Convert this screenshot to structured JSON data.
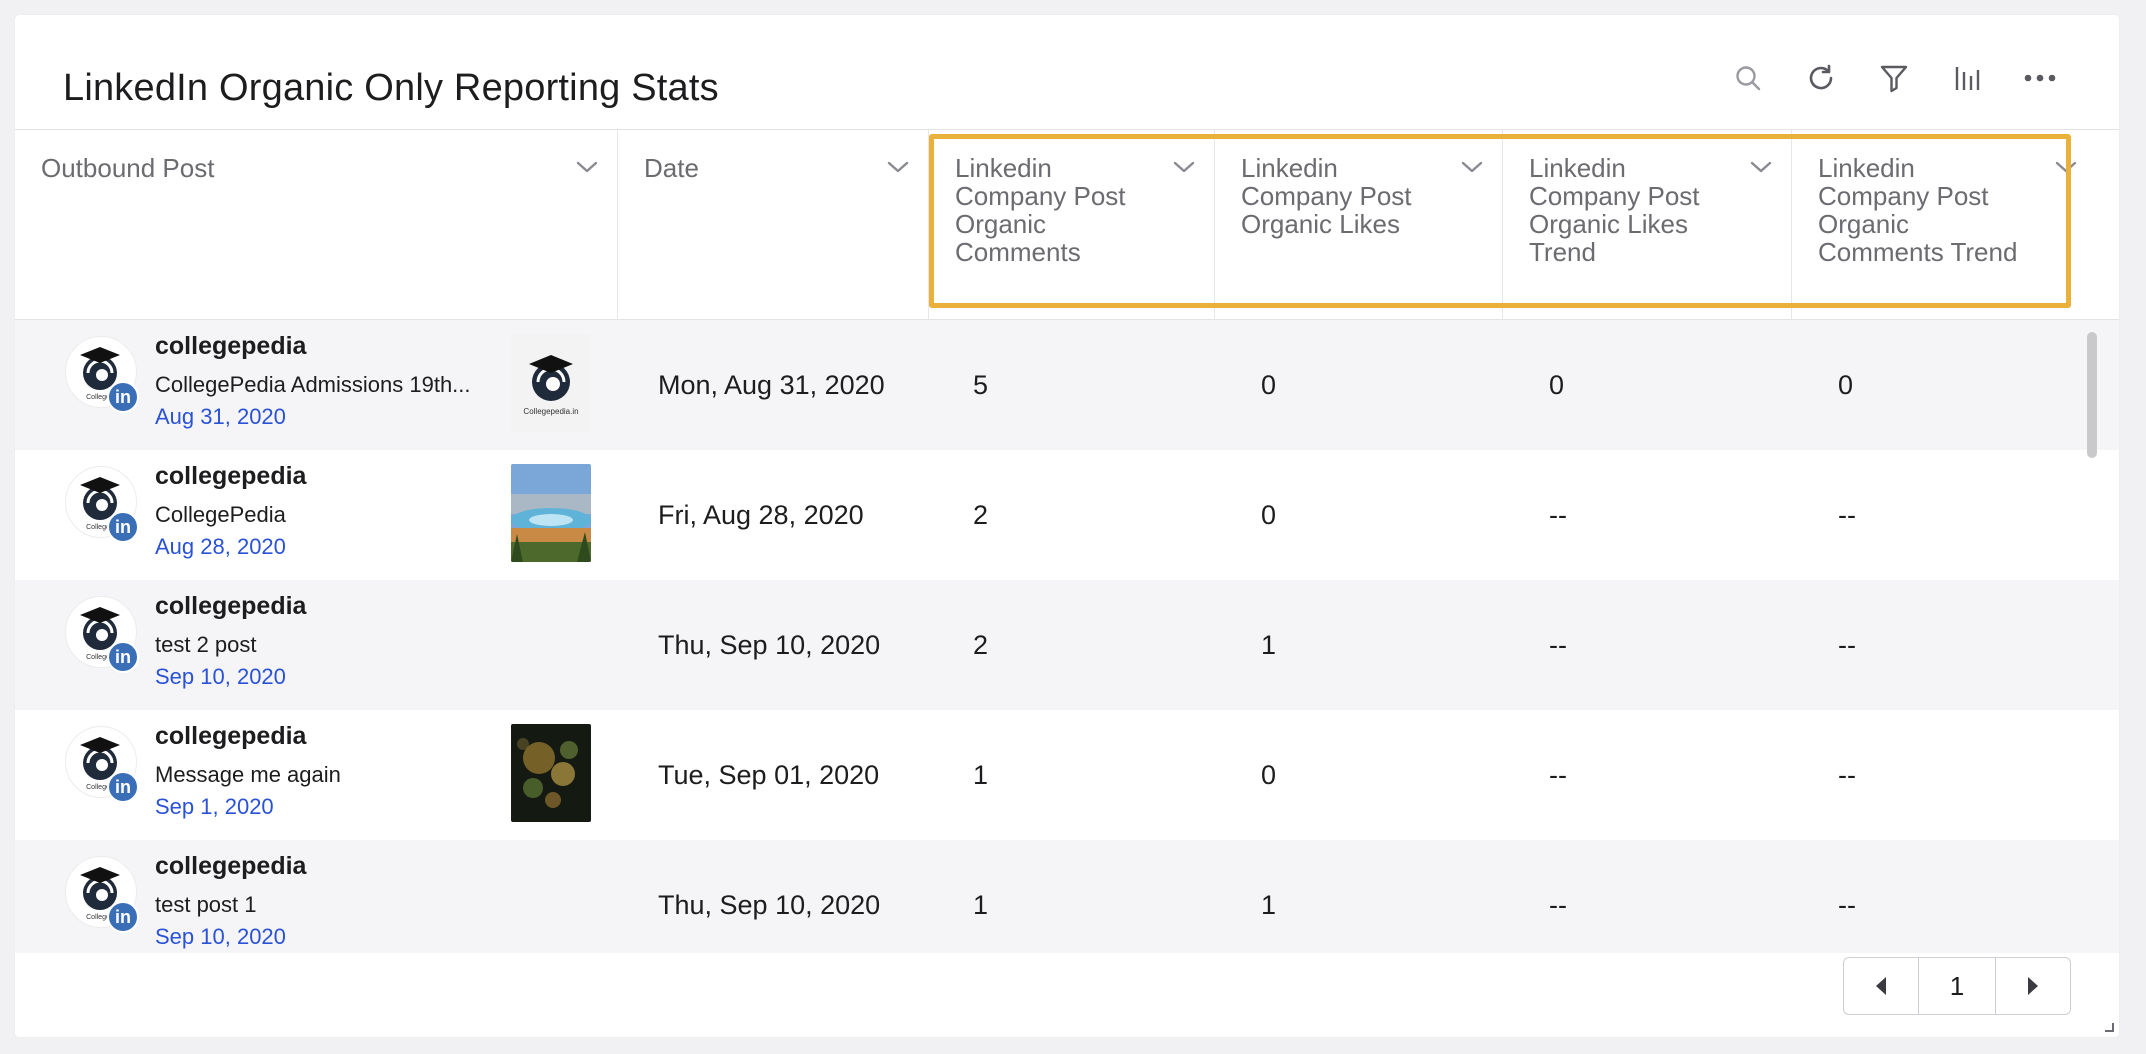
{
  "widget": {
    "title": "LinkedIn Organic Only Reporting Stats",
    "toolbar_icons": [
      "search-icon",
      "refresh-icon",
      "filter-icon",
      "chart-icon",
      "more-icon"
    ]
  },
  "table": {
    "columns": [
      {
        "key": "outbound_post",
        "label": "Outbound Post"
      },
      {
        "key": "date",
        "label": "Date"
      },
      {
        "key": "comments",
        "label": "Linkedin Company Post Organic Comments"
      },
      {
        "key": "likes",
        "label": "Linkedin Company Post Organic Likes"
      },
      {
        "key": "likes_trend",
        "label": "Linkedin Company Post Organic Likes Trend"
      },
      {
        "key": "comments_trend",
        "label": "Linkedin Company Post Organic Comments Trend"
      }
    ],
    "rows": [
      {
        "account": "collegepedia",
        "text": "CollegePedia Admissions 19th...",
        "post_date": "Aug 31, 2020",
        "thumbnail": "collegepedia-logo",
        "date": "Mon, Aug 31, 2020",
        "comments": "5",
        "likes": "0",
        "likes_trend": "0",
        "comments_trend": "0"
      },
      {
        "account": "collegepedia",
        "text": "CollegePedia",
        "post_date": "Aug 28, 2020",
        "thumbnail": "landscape-photo",
        "date": "Fri, Aug 28, 2020",
        "comments": "2",
        "likes": "0",
        "likes_trend": "--",
        "comments_trend": "--"
      },
      {
        "account": "collegepedia",
        "text": "test 2 post",
        "post_date": "Sep 10, 2020",
        "thumbnail": "",
        "date": "Thu, Sep 10, 2020",
        "comments": "2",
        "likes": "1",
        "likes_trend": "--",
        "comments_trend": "--"
      },
      {
        "account": "collegepedia",
        "text": "Message me again",
        "post_date": "Sep 1, 2020",
        "thumbnail": "bokeh-photo",
        "date": "Tue, Sep 01, 2020",
        "comments": "1",
        "likes": "0",
        "likes_trend": "--",
        "comments_trend": "--"
      },
      {
        "account": "collegepedia",
        "text": "test post 1",
        "post_date": "Sep 10, 2020",
        "thumbnail": "",
        "date": "Thu, Sep 10, 2020",
        "comments": "1",
        "likes": "1",
        "likes_trend": "--",
        "comments_trend": "--"
      }
    ],
    "network_badge": "in"
  },
  "pagination": {
    "current_page": "1"
  },
  "colors": {
    "highlight": "#e9b03a",
    "link": "#2a52d6",
    "linkedin": "#3a6fb7"
  }
}
